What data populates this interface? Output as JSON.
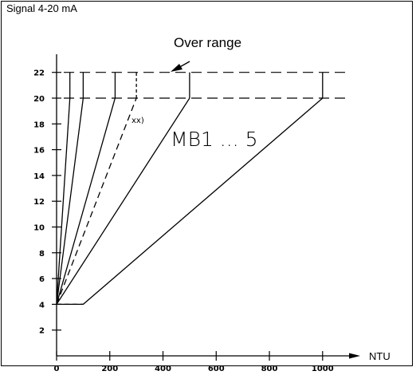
{
  "chart_data": {
    "type": "line",
    "title": "Signal 4-20 mA",
    "xlabel": "NTU",
    "ylabel": "",
    "xlim": [
      0,
      1080
    ],
    "ylim": [
      0,
      24
    ],
    "x_ticks": [
      "0",
      "200",
      "400",
      "600",
      "800",
      "1000"
    ],
    "y_ticks": [
      "2",
      "4",
      "6",
      "8",
      "10",
      "12",
      "14",
      "16",
      "18",
      "20",
      "22"
    ],
    "grid": false,
    "over_range_label": "Over range",
    "series_label": "MB1 ... 5",
    "note_label": "xx)",
    "over_range_levels": [
      20,
      22
    ],
    "series": [
      {
        "style": "solid",
        "points": [
          [
            0,
            4
          ],
          [
            50,
            20
          ]
        ],
        "riser": [
          50,
          20,
          22
        ]
      },
      {
        "style": "solid",
        "points": [
          [
            0,
            4
          ],
          [
            100,
            20
          ]
        ],
        "riser": [
          100,
          20,
          22
        ]
      },
      {
        "style": "solid",
        "points": [
          [
            0,
            4
          ],
          [
            220,
            20
          ]
        ],
        "riser": [
          220,
          20,
          22
        ]
      },
      {
        "style": "dashed",
        "points": [
          [
            0,
            4
          ],
          [
            300,
            20
          ]
        ],
        "riser": [
          300,
          20,
          22
        ]
      },
      {
        "style": "solid",
        "points": [
          [
            0,
            4
          ],
          [
            500,
            20
          ]
        ],
        "riser": [
          500,
          20,
          22
        ]
      },
      {
        "style": "solid",
        "points": [
          [
            0,
            4
          ],
          [
            100,
            4
          ],
          [
            1000,
            20
          ]
        ],
        "riser": [
          1000,
          20,
          22
        ]
      }
    ],
    "dashed_segments": [
      [
        0,
        4,
        100,
        4
      ]
    ]
  }
}
